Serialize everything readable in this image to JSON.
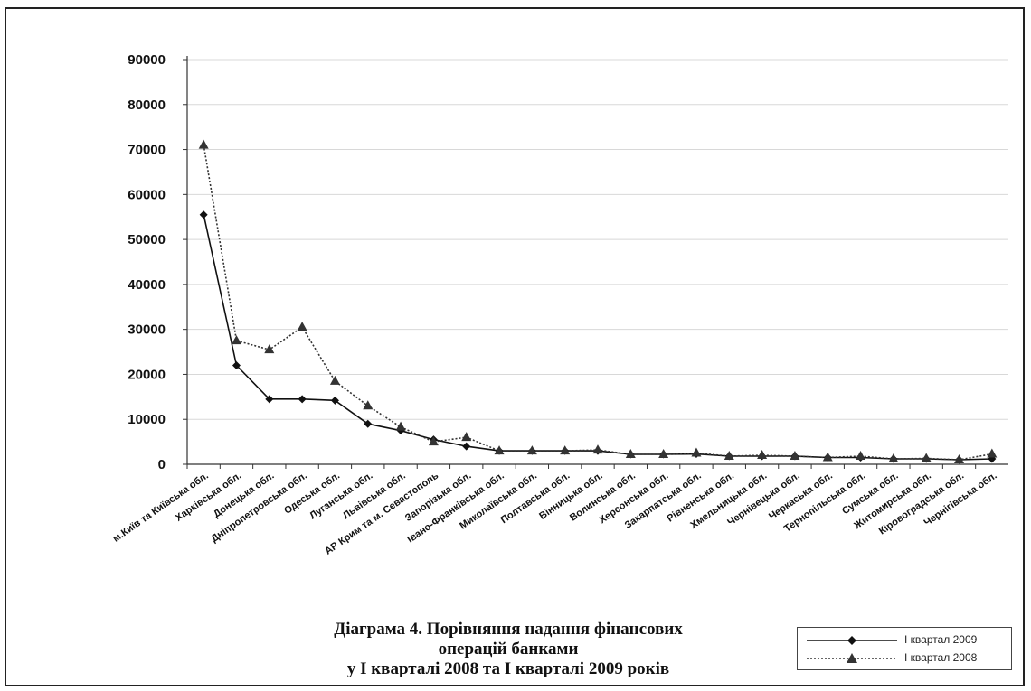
{
  "chart_data": {
    "type": "line",
    "title": "Діаграма 4. Порівняння надання фінансових операцій банками у І кварталі 2008 та І кварталі 2009 років",
    "title_lines": [
      "Діаграма 4. Порівняння надання фінансових",
      "операцій  банками",
      "у І кварталі 2008 та І кварталі 2009 років"
    ],
    "xlabel": "",
    "ylabel": "",
    "ylim": [
      0,
      90000
    ],
    "yticks": [
      0,
      10000,
      20000,
      30000,
      40000,
      50000,
      60000,
      70000,
      80000,
      90000
    ],
    "grid": true,
    "legend_position": "bottom-right",
    "categories": [
      "м.Київ та Київська обл.",
      "Харківська обл.",
      "Донецька обл.",
      "Дніпропетровська обл.",
      "Одеська обл.",
      "Луганська обл.",
      "Львівська обл.",
      "АР Крим та м. Севастополь",
      "Запорізька обл.",
      "Івано-Франківська обл.",
      "Миколаївська обл.",
      "Полтавська обл.",
      "Вінницька обл.",
      "Волинська обл.",
      "Херсонська обл.",
      "Закарпатська обл.",
      "Рівненська обл.",
      "Хмельницька обл.",
      "Чернівецька обл.",
      "Черкаська обл.",
      "Тернопільська обл.",
      "Сумська обл.",
      "Житомирська обл.",
      "Кіровоградська обл.",
      "Чернігівська обл."
    ],
    "series": [
      {
        "name": "І квартал 2009",
        "color": "#111111",
        "style": "solid",
        "marker": "diamond",
        "values": [
          55500,
          22000,
          14500,
          14500,
          14200,
          9000,
          7500,
          5500,
          4000,
          3000,
          3000,
          3000,
          3000,
          2200,
          2200,
          2300,
          1800,
          1800,
          1800,
          1500,
          1500,
          1200,
          1200,
          1000,
          1200
        ]
      },
      {
        "name": "І квартал 2008",
        "color": "#333333",
        "style": "dotted",
        "marker": "triangle",
        "values": [
          71000,
          27500,
          25500,
          30500,
          18500,
          13000,
          8300,
          5000,
          6000,
          3000,
          3000,
          3000,
          3200,
          2200,
          2200,
          2500,
          1800,
          2000,
          1800,
          1500,
          1800,
          1200,
          1300,
          1000,
          2300
        ]
      }
    ]
  }
}
